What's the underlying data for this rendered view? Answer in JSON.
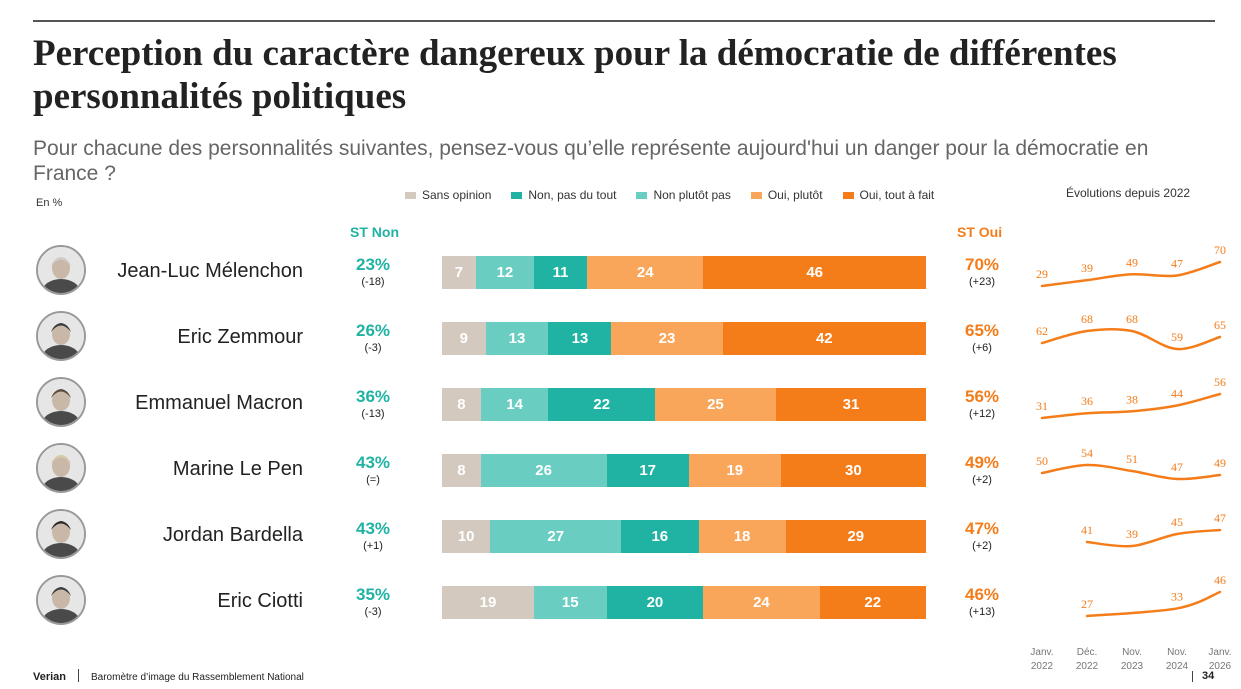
{
  "title": "Perception du caractère dangereux pour la démocratie de différentes personnalités politiques",
  "subtitle": "Pour chacune des personnalités suivantes, pensez-vous qu’elle représente aujourd'hui un danger pour la démocratie en France ?",
  "unit": "En %",
  "evolution_title": "Évolutions depuis 2022",
  "st_non_label": "ST Non",
  "st_oui_label": "ST Oui",
  "footer": {
    "brand": "Verian",
    "text": "Baromètre d’image du Rassemblement National",
    "page": "34"
  },
  "colors": {
    "sans_opinion": "#d3c9bf",
    "non_pas_du_tout": "#20b3a4",
    "non_plutot_pas": "#6acdc2",
    "oui_plutot": "#f9a65a",
    "oui_tout_a_fait": "#f47d1a"
  },
  "chart_data": [
    {
      "type": "bar",
      "stacked": true,
      "orientation": "horizontal",
      "legend": [
        {
          "key": "sans_opinion",
          "label": "Sans opinion"
        },
        {
          "key": "non_pas_du_tout",
          "label": "Non, pas du tout"
        },
        {
          "key": "non_plutot_pas",
          "label": "Non plutôt pas"
        },
        {
          "key": "oui_plutot",
          "label": "Oui, plutôt"
        },
        {
          "key": "oui_tout_a_fait",
          "label": "Oui, tout à fait"
        }
      ],
      "categories": [
        "Jean-Luc Mélenchon",
        "Eric Zemmour",
        "Emmanuel Macron",
        "Marine Le Pen",
        "Jordan Bardella",
        "Eric Ciotti"
      ],
      "rows": [
        {
          "name": "Jean-Luc Mélenchon",
          "segments": [
            {
              "key": "sans_opinion",
              "value": 7
            },
            {
              "key": "non_plutot_pas",
              "value": 12
            },
            {
              "key": "non_pas_du_tout",
              "value": 11
            },
            {
              "key": "oui_plutot",
              "value": 24
            },
            {
              "key": "oui_tout_a_fait",
              "value": 46
            }
          ],
          "st_non": "23%",
          "st_non_change": "(-18)",
          "st_oui": "70%",
          "st_oui_change": "(+23)"
        },
        {
          "name": "Eric Zemmour",
          "segments": [
            {
              "key": "sans_opinion",
              "value": 9
            },
            {
              "key": "non_plutot_pas",
              "value": 13
            },
            {
              "key": "non_pas_du_tout",
              "value": 13
            },
            {
              "key": "oui_plutot",
              "value": 23
            },
            {
              "key": "oui_tout_a_fait",
              "value": 42
            }
          ],
          "st_non": "26%",
          "st_non_change": "(-3)",
          "st_oui": "65%",
          "st_oui_change": "(+6)"
        },
        {
          "name": "Emmanuel Macron",
          "segments": [
            {
              "key": "sans_opinion",
              "value": 8
            },
            {
              "key": "non_plutot_pas",
              "value": 14
            },
            {
              "key": "non_pas_du_tout",
              "value": 22
            },
            {
              "key": "oui_plutot",
              "value": 25
            },
            {
              "key": "oui_tout_a_fait",
              "value": 31
            }
          ],
          "st_non": "36%",
          "st_non_change": "(-13)",
          "st_oui": "56%",
          "st_oui_change": "(+12)"
        },
        {
          "name": "Marine Le Pen",
          "segments": [
            {
              "key": "sans_opinion",
              "value": 8
            },
            {
              "key": "non_plutot_pas",
              "value": 26
            },
            {
              "key": "non_pas_du_tout",
              "value": 17
            },
            {
              "key": "oui_plutot",
              "value": 19
            },
            {
              "key": "oui_tout_a_fait",
              "value": 30
            }
          ],
          "st_non": "43%",
          "st_non_change": "(=)",
          "st_oui": "49%",
          "st_oui_change": "(+2)"
        },
        {
          "name": "Jordan Bardella",
          "segments": [
            {
              "key": "sans_opinion",
              "value": 10
            },
            {
              "key": "non_plutot_pas",
              "value": 27
            },
            {
              "key": "non_pas_du_tout",
              "value": 16
            },
            {
              "key": "oui_plutot",
              "value": 18
            },
            {
              "key": "oui_tout_a_fait",
              "value": 29
            }
          ],
          "st_non": "43%",
          "st_non_change": "(+1)",
          "st_oui": "47%",
          "st_oui_change": "(+2)"
        },
        {
          "name": "Eric Ciotti",
          "segments": [
            {
              "key": "sans_opinion",
              "value": 19
            },
            {
              "key": "non_plutot_pas",
              "value": 15
            },
            {
              "key": "non_pas_du_tout",
              "value": 20
            },
            {
              "key": "oui_plutot",
              "value": 24
            },
            {
              "key": "oui_tout_a_fait",
              "value": 22
            }
          ],
          "st_non": "35%",
          "st_non_change": "(-3)",
          "st_oui": "46%",
          "st_oui_change": "(+13)"
        }
      ]
    },
    {
      "type": "line",
      "title": "Évolutions depuis 2022",
      "x": [
        {
          "month": "Janv.",
          "year": "2022"
        },
        {
          "month": "Déc.",
          "year": "2022"
        },
        {
          "month": "Nov.",
          "year": "2023"
        },
        {
          "month": "Nov.",
          "year": "2024"
        },
        {
          "month": "Janv.",
          "year": "2026"
        }
      ],
      "series": [
        {
          "name": "Jean-Luc Mélenchon",
          "values": [
            29,
            39,
            49,
            47,
            70
          ]
        },
        {
          "name": "Eric Zemmour",
          "values": [
            62,
            68,
            68,
            59,
            65
          ]
        },
        {
          "name": "Emmanuel Macron",
          "values": [
            31,
            36,
            38,
            44,
            56
          ]
        },
        {
          "name": "Marine Le Pen",
          "values": [
            50,
            54,
            51,
            47,
            49
          ]
        },
        {
          "name": "Jordan Bardella",
          "values": [
            null,
            41,
            39,
            45,
            47
          ]
        },
        {
          "name": "Eric Ciotti",
          "values": [
            null,
            27,
            null,
            33,
            46
          ]
        }
      ]
    }
  ]
}
